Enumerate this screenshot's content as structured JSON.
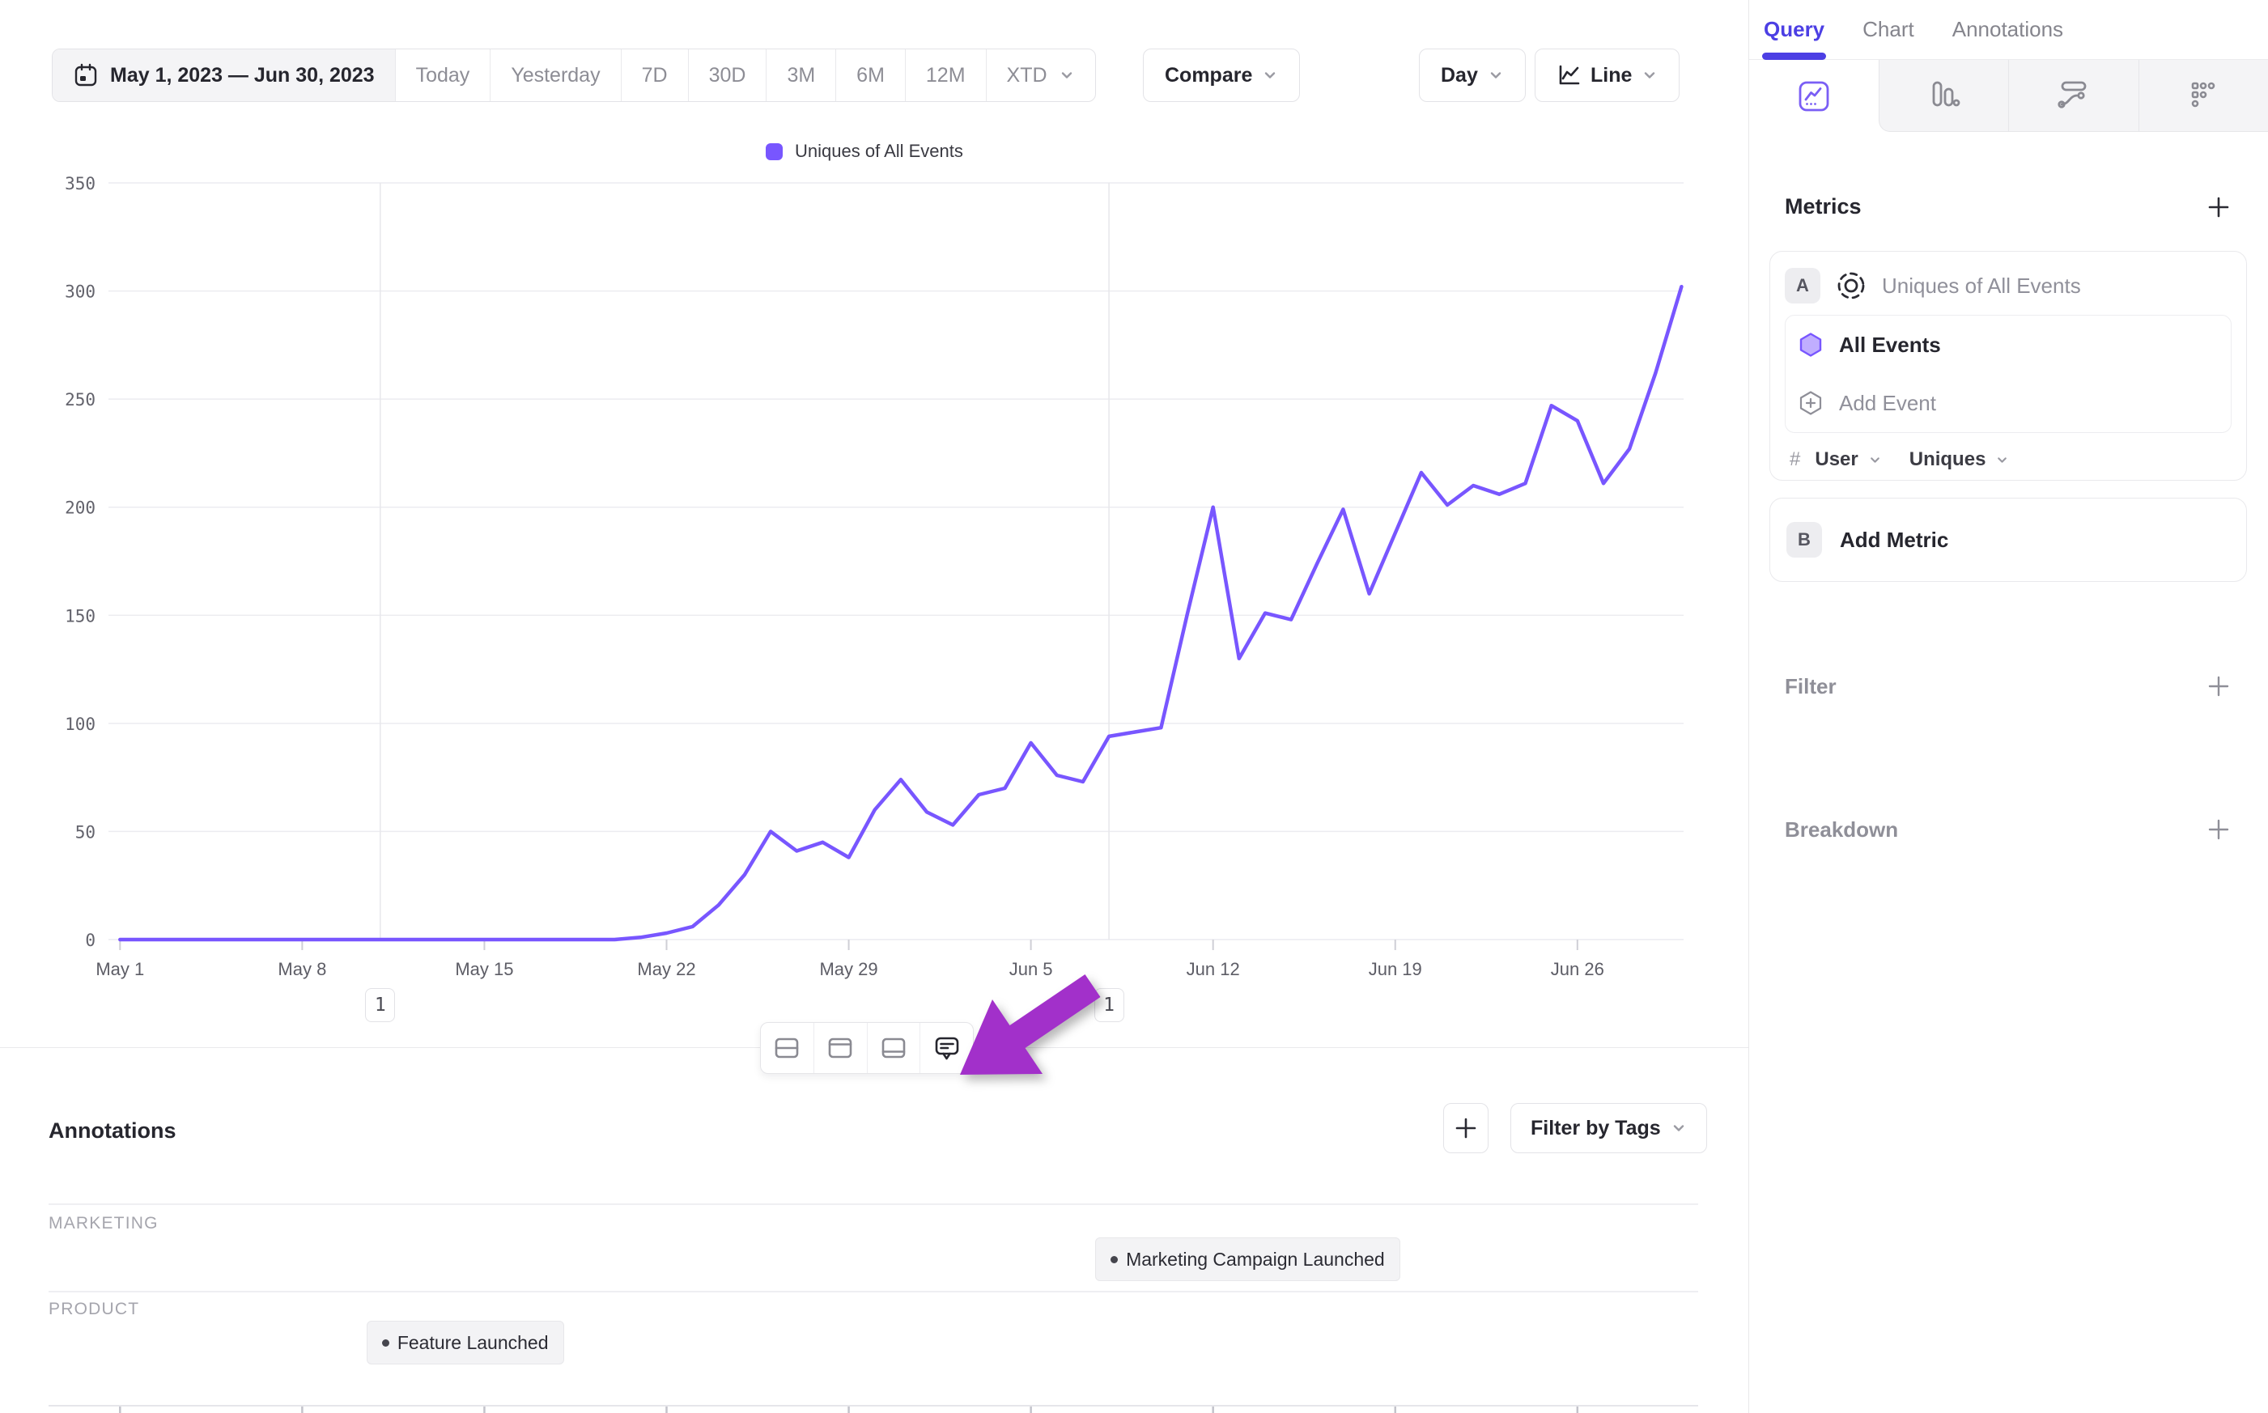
{
  "toolbar": {
    "date_range": "May 1, 2023 — Jun 30, 2023",
    "presets": [
      "Today",
      "Yesterday",
      "7D",
      "30D",
      "3M",
      "6M",
      "12M"
    ],
    "xtd": "XTD",
    "compare": "Compare",
    "granularity": "Day",
    "chart_type": "Line"
  },
  "sidebar": {
    "tabs": [
      {
        "label": "Query",
        "active": true
      },
      {
        "label": "Chart",
        "active": false
      },
      {
        "label": "Annotations",
        "active": false
      }
    ],
    "chart_type_icons": [
      "insights-line-icon",
      "bar-chart-icon",
      "flows-icon",
      "retention-icon"
    ],
    "metrics": {
      "title": "Metrics",
      "metric_a": {
        "badge": "A",
        "name": "Uniques of All Events",
        "event": "All Events",
        "add_event": "Add Event",
        "count_symbol": "#",
        "entity": "User",
        "aggregation": "Uniques"
      },
      "metric_b": {
        "badge": "B",
        "label": "Add Metric"
      }
    },
    "filter": {
      "label": "Filter"
    },
    "breakdown": {
      "label": "Breakdown"
    }
  },
  "annotations_panel": {
    "title": "Annotations",
    "filter_by_tags": "Filter by Tags",
    "groups": [
      {
        "name": "MARKETING",
        "items": [
          {
            "label": "Marketing Campaign Launched",
            "day_index": 38
          }
        ]
      },
      {
        "name": "PRODUCT",
        "items": [
          {
            "label": "Feature Launched",
            "day_index": 10
          }
        ]
      }
    ]
  },
  "chart_data": {
    "type": "line",
    "title": "Uniques of All Events",
    "legend": [
      {
        "label": "Uniques of All Events",
        "color": "#7856ff"
      }
    ],
    "legend_position": "top",
    "grid": true,
    "granularity": "day",
    "x_start_date": "May 1, 2023",
    "x_end_date": "Jun 30, 2023",
    "x_tick_labels": [
      "May 1",
      "May 8",
      "May 15",
      "May 22",
      "May 29",
      "Jun 5",
      "Jun 12",
      "Jun 19",
      "Jun 26"
    ],
    "y_ticks": [
      0,
      50,
      100,
      150,
      200,
      250,
      300,
      350
    ],
    "ylim": [
      0,
      350
    ],
    "series": [
      {
        "name": "Uniques of All Events",
        "color": "#7856ff",
        "values": [
          0,
          0,
          0,
          0,
          0,
          0,
          0,
          0,
          0,
          0,
          0,
          0,
          0,
          0,
          0,
          0,
          0,
          0,
          0,
          0,
          1,
          3,
          6,
          16,
          30,
          50,
          41,
          45,
          38,
          60,
          74,
          59,
          53,
          67,
          70,
          91,
          76,
          73,
          94,
          96,
          98,
          150,
          200,
          130,
          151,
          148,
          174,
          199,
          160,
          188,
          216,
          201,
          210,
          206,
          211,
          247,
          240,
          211,
          227,
          262,
          302
        ]
      }
    ],
    "annotation_markers": [
      {
        "day_index": 10,
        "count": 1
      },
      {
        "day_index": 38,
        "count": 1
      }
    ]
  },
  "colors": {
    "accent_purple": "#7856ff",
    "active_tab_purple": "#4c3fe4",
    "pointer_arrow_purple": "#a230ca",
    "grid_line": "#ececf0",
    "text_dark": "#26262e",
    "text_gray": "#8d8d95"
  },
  "icons": {
    "calendar": "calendar-icon",
    "chevron_down": "chevron-down-icon",
    "line_chart": "line-chart-icon",
    "insights": "insights-line-icon",
    "bars": "bar-chart-icon",
    "flows": "flows-icon",
    "retention": "retention-icon",
    "metric_settings": "metric-settings-icon",
    "event_hexagon": "event-hexagon-icon",
    "add_event_hexagon": "add-event-hexagon-icon",
    "plus": "plus-icon",
    "layout_split": "layout-split-icon",
    "layout_top": "layout-top-icon",
    "layout_bottom": "layout-bottom-icon",
    "comment": "annotation-comment-icon",
    "pointer_arrow": "pointer-arrow"
  }
}
